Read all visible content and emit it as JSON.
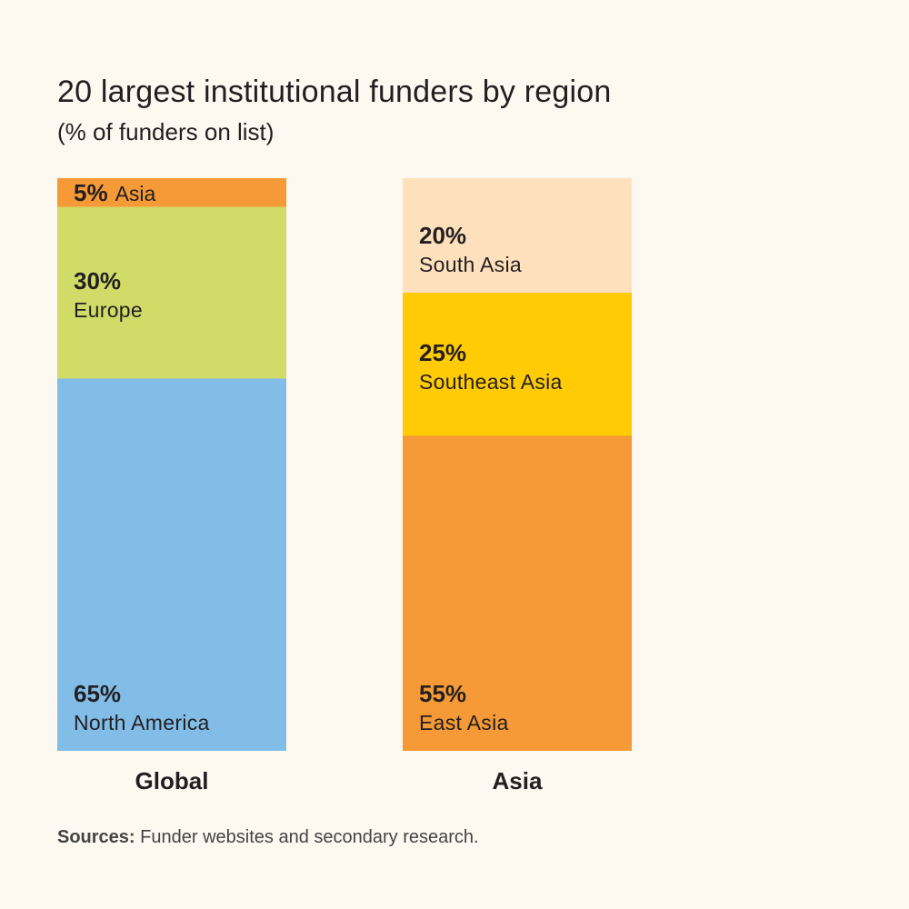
{
  "chart_data": {
    "type": "bar",
    "stacked": true,
    "title": "20 largest institutional funders by region",
    "subtitle": "(% of funders on list)",
    "unit": "%",
    "ylim": [
      0,
      100
    ],
    "categories": [
      "Global",
      "Asia"
    ],
    "stacks": [
      {
        "category": "Global",
        "segments": [
          {
            "name": "North America",
            "value": 65,
            "label": "65%",
            "color": "#82bde8"
          },
          {
            "name": "Europe",
            "value": 30,
            "label": "30%",
            "color": "#d2da68"
          },
          {
            "name": "Asia",
            "value": 5,
            "label": "5%",
            "color": "#f59a36"
          }
        ]
      },
      {
        "category": "Asia",
        "segments": [
          {
            "name": "East Asia",
            "value": 55,
            "label": "55%",
            "color": "#f59a36"
          },
          {
            "name": "Southeast Asia",
            "value": 25,
            "label": "25%",
            "color": "#ffcb05"
          },
          {
            "name": "South Asia",
            "value": 20,
            "label": "20%",
            "color": "#fee1bc"
          }
        ]
      }
    ]
  },
  "source": {
    "label": "Sources:",
    "text": " Funder websites and secondary research."
  }
}
